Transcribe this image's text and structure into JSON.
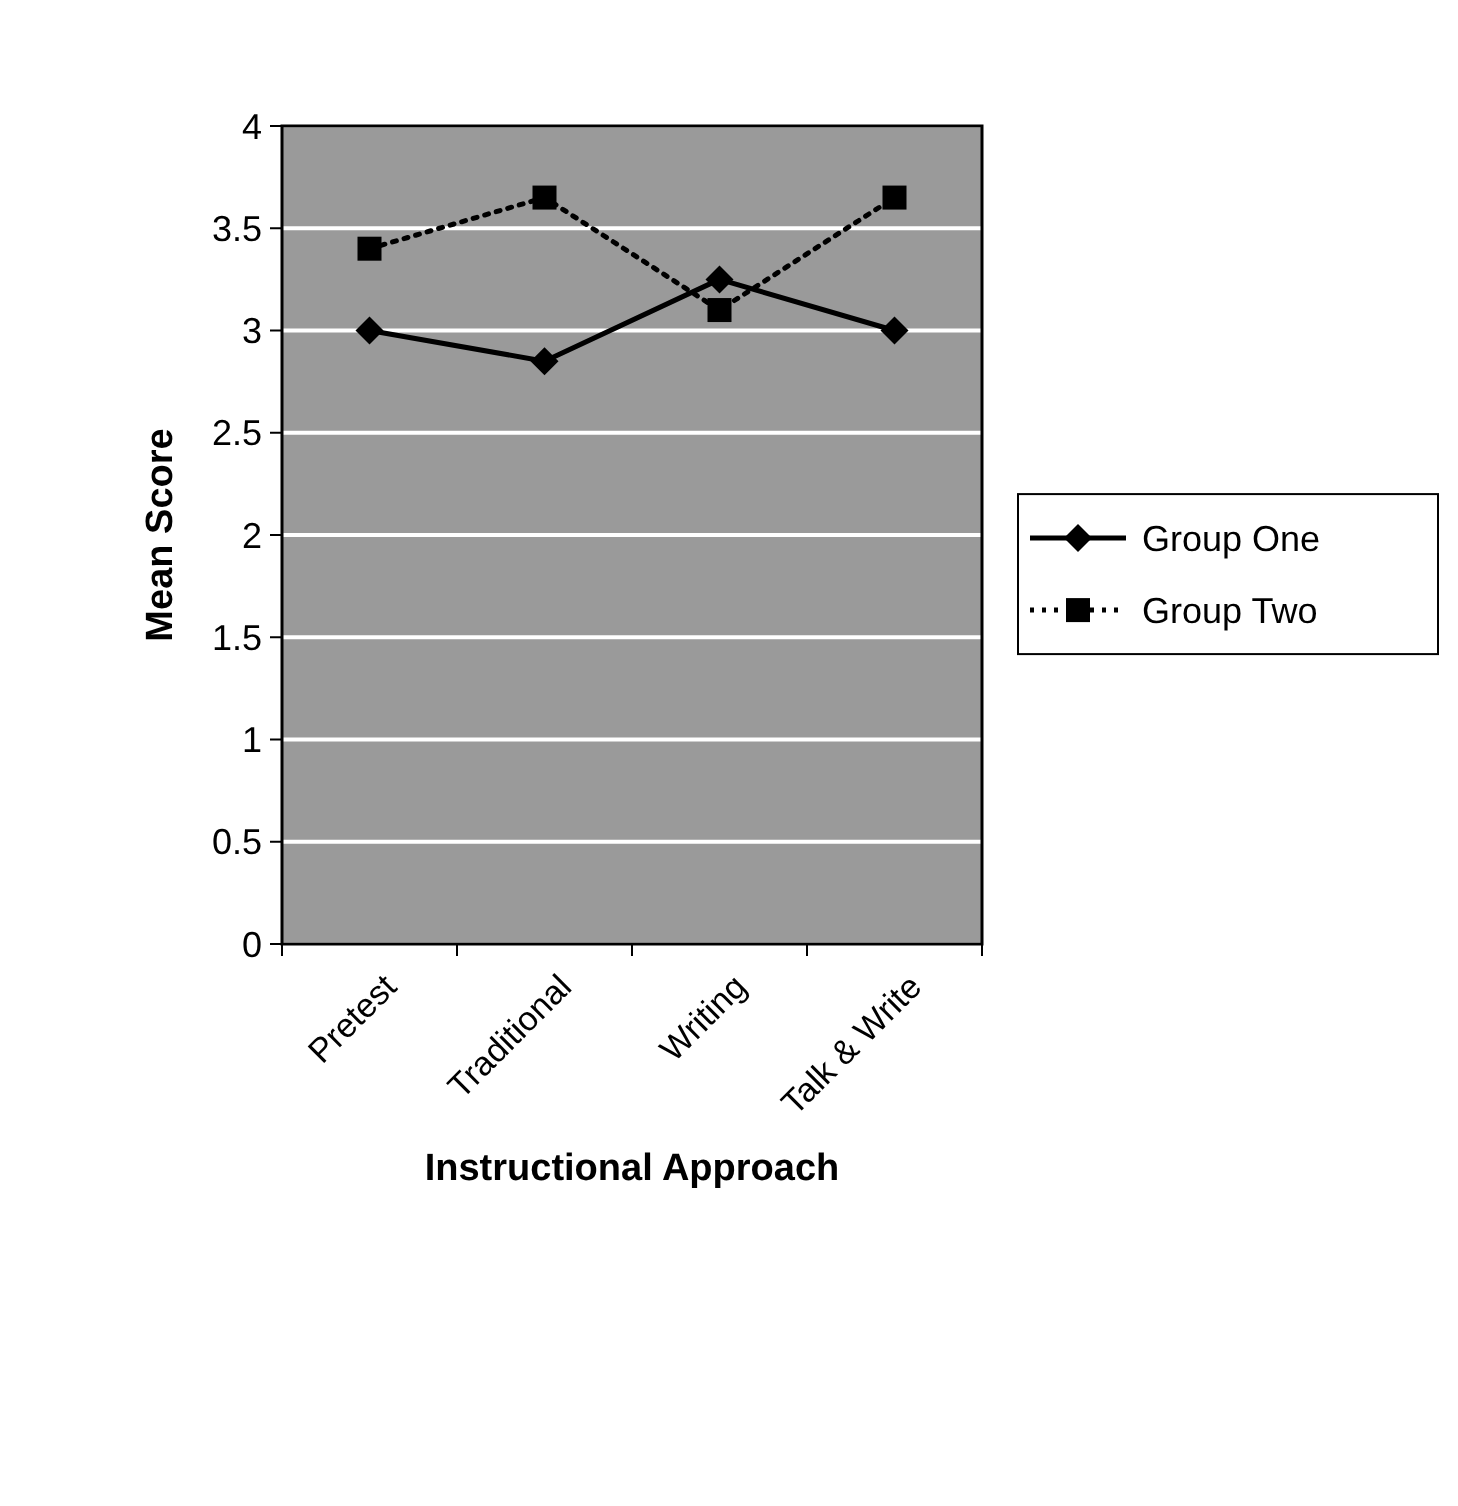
{
  "chart_data": {
    "type": "line",
    "xlabel": "Instructional Approach",
    "ylabel": "Mean Score",
    "categories": [
      "Pretest",
      "Traditional",
      "Writing",
      "Talk & Write"
    ],
    "series": [
      {
        "name": "Group One",
        "color": "#000000",
        "values": [
          3,
          2.85,
          3.25,
          3
        ],
        "marker": "diamond",
        "line_style": "solid"
      },
      {
        "name": "Group Two",
        "color": "#000000",
        "values": [
          3.4,
          3.65,
          3.1,
          3.65
        ],
        "marker": "square",
        "line_style": "dotted"
      }
    ],
    "ylim": [
      0,
      4
    ],
    "yticks": [
      0,
      0.5,
      1,
      1.5,
      2,
      2.5,
      3,
      3.5,
      4
    ],
    "grid": "y",
    "legend": "right"
  }
}
